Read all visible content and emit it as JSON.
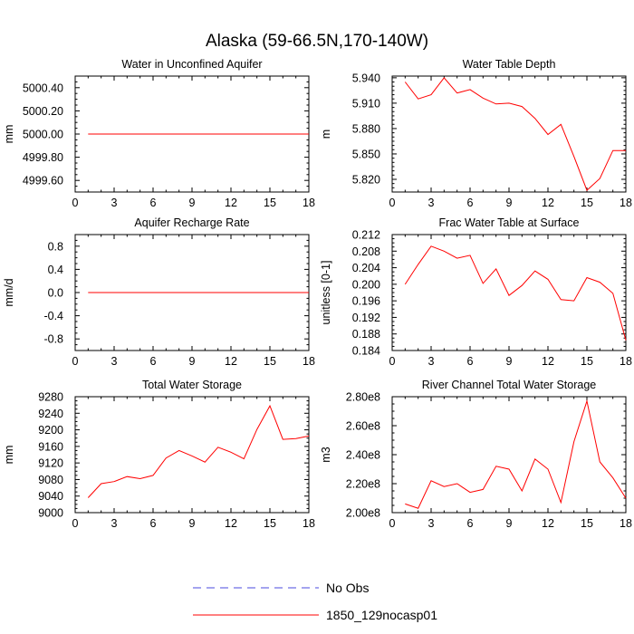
{
  "figure": {
    "title": "Alaska (59-66.5N,170-140W)",
    "colors": {
      "model": "#ff0000",
      "obs": "#4a4adf",
      "axis": "#000000"
    }
  },
  "legend": {
    "entries": [
      {
        "label": "No Obs",
        "style": "dashed",
        "color": "#4a4adf"
      },
      {
        "label": "1850_129nocasp01",
        "style": "solid",
        "color": "#ff0000"
      }
    ]
  },
  "chart_data": [
    {
      "type": "line",
      "title": "Water in Unconfined Aquifer",
      "ylabel": "mm",
      "xlim": [
        0,
        18
      ],
      "ylim": [
        4999.5,
        5000.5
      ],
      "xticks": [
        0,
        3,
        6,
        9,
        12,
        15,
        18
      ],
      "xtick_labels": [
        "0",
        "3",
        "6",
        "9",
        "12",
        "15",
        "18"
      ],
      "yticks": [
        4999.6,
        4999.8,
        5000.0,
        5000.2,
        5000.4
      ],
      "ytick_labels": [
        "4999.60",
        "4999.80",
        "5000.00",
        "5000.20",
        "5000.40"
      ],
      "yminor": [
        4999.5,
        4999.55,
        4999.65,
        4999.7,
        4999.75,
        4999.85,
        4999.9,
        4999.95,
        5000.05,
        5000.1,
        5000.15,
        5000.25,
        5000.3,
        5000.35,
        5000.45,
        5000.5
      ],
      "series": [
        {
          "name": "1850_129nocasp01",
          "x": [
            1,
            2,
            3,
            4,
            5,
            6,
            7,
            8,
            9,
            10,
            11,
            12,
            13,
            14,
            15,
            16,
            17,
            18
          ],
          "values": [
            5000,
            5000,
            5000,
            5000,
            5000,
            5000,
            5000,
            5000,
            5000,
            5000,
            5000,
            5000,
            5000,
            5000,
            5000,
            5000,
            5000,
            5000
          ]
        }
      ]
    },
    {
      "type": "line",
      "title": "Water Table Depth",
      "ylabel": "m",
      "xlim": [
        0,
        18
      ],
      "ylim": [
        5.805,
        5.942
      ],
      "xticks": [
        0,
        3,
        6,
        9,
        12,
        15,
        18
      ],
      "xtick_labels": [
        "0",
        "3",
        "6",
        "9",
        "12",
        "15",
        "18"
      ],
      "yticks": [
        5.82,
        5.85,
        5.88,
        5.91,
        5.94
      ],
      "ytick_labels": [
        "5.820",
        "5.850",
        "5.880",
        "5.910",
        "5.940"
      ],
      "yminor": [
        5.81,
        5.815,
        5.825,
        5.83,
        5.835,
        5.84,
        5.845,
        5.855,
        5.86,
        5.865,
        5.87,
        5.875,
        5.885,
        5.89,
        5.895,
        5.9,
        5.905,
        5.915,
        5.92,
        5.925,
        5.93,
        5.935
      ],
      "series": [
        {
          "name": "1850_129nocasp01",
          "x": [
            1,
            2,
            3,
            4,
            5,
            6,
            7,
            8,
            9,
            10,
            11,
            12,
            13,
            14,
            15,
            16,
            17,
            18
          ],
          "values": [
            5.935,
            5.915,
            5.92,
            5.94,
            5.922,
            5.926,
            5.916,
            5.909,
            5.91,
            5.906,
            5.892,
            5.873,
            5.885,
            5.847,
            5.807,
            5.821,
            5.854,
            5.854
          ]
        }
      ]
    },
    {
      "type": "line",
      "title": "Aquifer Recharge Rate",
      "ylabel": "mm/d",
      "xlim": [
        0,
        18
      ],
      "ylim": [
        -1.0,
        1.0
      ],
      "xticks": [
        0,
        3,
        6,
        9,
        12,
        15,
        18
      ],
      "xtick_labels": [
        "0",
        "3",
        "6",
        "9",
        "12",
        "15",
        "18"
      ],
      "yticks": [
        -0.8,
        -0.4,
        0.0,
        0.4,
        0.8
      ],
      "ytick_labels": [
        "-0.8",
        "-0.4",
        "0.0",
        "0.4",
        "0.8"
      ],
      "yminor": [
        -1.0,
        -0.9,
        -0.7,
        -0.6,
        -0.5,
        -0.3,
        -0.2,
        -0.1,
        0.1,
        0.2,
        0.3,
        0.5,
        0.6,
        0.7,
        0.9,
        1.0
      ],
      "series": [
        {
          "name": "1850_129nocasp01",
          "x": [
            1,
            2,
            3,
            4,
            5,
            6,
            7,
            8,
            9,
            10,
            11,
            12,
            13,
            14,
            15,
            16,
            17,
            18
          ],
          "values": [
            0,
            0,
            0,
            0,
            0,
            0,
            0,
            0,
            0,
            0,
            0,
            0,
            0,
            0,
            0,
            0,
            0,
            0
          ]
        }
      ]
    },
    {
      "type": "line",
      "title": "Frac Water Table at Surface",
      "ylabel": "unitless [0-1]",
      "xlim": [
        0,
        18
      ],
      "ylim": [
        0.184,
        0.212
      ],
      "xticks": [
        0,
        3,
        6,
        9,
        12,
        15,
        18
      ],
      "xtick_labels": [
        "0",
        "3",
        "6",
        "9",
        "12",
        "15",
        "18"
      ],
      "yticks": [
        0.184,
        0.188,
        0.192,
        0.196,
        0.2,
        0.204,
        0.208,
        0.212
      ],
      "ytick_labels": [
        "0.184",
        "0.188",
        "0.192",
        "0.196",
        "0.200",
        "0.204",
        "0.208",
        "0.212"
      ],
      "yminor": [
        0.185,
        0.186,
        0.187,
        0.189,
        0.19,
        0.191,
        0.193,
        0.194,
        0.195,
        0.197,
        0.198,
        0.199,
        0.201,
        0.202,
        0.203,
        0.205,
        0.206,
        0.207,
        0.209,
        0.21,
        0.211
      ],
      "series": [
        {
          "name": "1850_129nocasp01",
          "x": [
            1,
            2,
            3,
            4,
            5,
            6,
            7,
            8,
            9,
            10,
            11,
            12,
            13,
            14,
            15,
            16,
            17,
            18
          ],
          "values": [
            0.2,
            0.2048,
            0.2092,
            0.208,
            0.2063,
            0.207,
            0.2002,
            0.2037,
            0.1973,
            0.1997,
            0.2032,
            0.2012,
            0.1963,
            0.196,
            0.2016,
            0.2005,
            0.1978,
            0.1865
          ]
        }
      ]
    },
    {
      "type": "line",
      "title": "Total Water Storage",
      "ylabel": "mm",
      "xlim": [
        0,
        18
      ],
      "ylim": [
        9000,
        9280
      ],
      "xticks": [
        0,
        3,
        6,
        9,
        12,
        15,
        18
      ],
      "xtick_labels": [
        "0",
        "3",
        "6",
        "9",
        "12",
        "15",
        "18"
      ],
      "yticks": [
        9000,
        9040,
        9080,
        9120,
        9160,
        9200,
        9240,
        9280
      ],
      "ytick_labels": [
        "9000",
        "9040",
        "9080",
        "9120",
        "9160",
        "9200",
        "9240",
        "9280"
      ],
      "yminor": [
        9010,
        9020,
        9030,
        9050,
        9060,
        9070,
        9090,
        9100,
        9110,
        9130,
        9140,
        9150,
        9170,
        9180,
        9190,
        9210,
        9220,
        9230,
        9250,
        9260,
        9270
      ],
      "series": [
        {
          "name": "1850_129nocasp01",
          "x": [
            1,
            2,
            3,
            4,
            5,
            6,
            7,
            8,
            9,
            10,
            11,
            12,
            13,
            14,
            15,
            16,
            17,
            18
          ],
          "values": [
            9036,
            9070,
            9075,
            9087,
            9082,
            9090,
            9132,
            9150,
            9137,
            9122,
            9158,
            9146,
            9130,
            9201,
            9258,
            9177,
            9179,
            9185
          ]
        }
      ]
    },
    {
      "type": "line",
      "title": "River Channel Total Water Storage",
      "ylabel": "m3",
      "xlim": [
        0,
        18
      ],
      "ylim": [
        200000000,
        280000000
      ],
      "xticks": [
        0,
        3,
        6,
        9,
        12,
        15,
        18
      ],
      "xtick_labels": [
        "0",
        "3",
        "6",
        "9",
        "12",
        "15",
        "18"
      ],
      "yticks": [
        200000000,
        220000000,
        240000000,
        260000000,
        280000000
      ],
      "ytick_labels": [
        "2.00e8",
        "2.20e8",
        "2.40e8",
        "2.60e8",
        "2.80e8"
      ],
      "yminor": [
        205000000,
        210000000,
        215000000,
        225000000,
        230000000,
        235000000,
        245000000,
        250000000,
        255000000,
        265000000,
        270000000,
        275000000
      ],
      "series": [
        {
          "name": "1850_129nocasp01",
          "x": [
            1,
            2,
            3,
            4,
            5,
            6,
            7,
            8,
            9,
            10,
            11,
            12,
            13,
            14,
            15,
            16,
            17,
            18
          ],
          "values": [
            206000000,
            203000000,
            222000000,
            218000000,
            220000000,
            214000000,
            216000000,
            232000000,
            230000000,
            215000000,
            237000000,
            230000000,
            207000000,
            249000000,
            277000000,
            235000000,
            224000000,
            210000000
          ]
        }
      ]
    }
  ]
}
